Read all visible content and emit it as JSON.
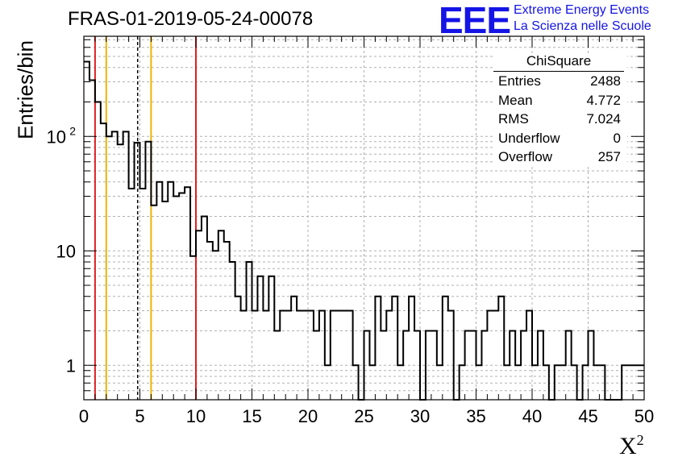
{
  "title": "FRAS-01-2019-05-24-00078",
  "logo": {
    "mark": "EEE",
    "line1": "Extreme Energy Events",
    "line2": "La Scienza nelle Scuole",
    "color": "#1414e6"
  },
  "stats_box": {
    "title": "ChiSquare",
    "rows": [
      {
        "label": "Entries",
        "value": "2488"
      },
      {
        "label": "Mean",
        "value": "4.772"
      },
      {
        "label": "RMS",
        "value": "7.024"
      },
      {
        "label": "Underflow",
        "value": "0"
      },
      {
        "label": "Overflow",
        "value": "257"
      }
    ]
  },
  "chart_data": {
    "type": "histogram",
    "title": "FRAS-01-2019-05-24-00078",
    "xlabel": "X",
    "xlabel_sup": "2",
    "ylabel": "Entries/bin",
    "xlim": [
      0,
      50
    ],
    "ylim": [
      0.5,
      750
    ],
    "yscale": "log",
    "grid": true,
    "bin_width": 0.5,
    "x_ticks": [
      0,
      5,
      10,
      15,
      20,
      25,
      30,
      35,
      40,
      45,
      50
    ],
    "y_ticks": [
      {
        "value": 1,
        "label": "1"
      },
      {
        "value": 10,
        "label": "10"
      },
      {
        "value": 100,
        "label": "10",
        "sup": "2"
      }
    ],
    "bin_counts": [
      450,
      310,
      200,
      130,
      100,
      110,
      85,
      110,
      35,
      88,
      35,
      90,
      25,
      40,
      27,
      40,
      30,
      32,
      36,
      9,
      15,
      20,
      12,
      10,
      15,
      12,
      8,
      4,
      3,
      8,
      3,
      6,
      3,
      6,
      2,
      3,
      3,
      4,
      3,
      3,
      3,
      2,
      3,
      1,
      3,
      3,
      3,
      3,
      1,
      0.5,
      2,
      1,
      4,
      2,
      3,
      4,
      1,
      2,
      4,
      2,
      0.5,
      2,
      2,
      1,
      4,
      3,
      0.5,
      1,
      2,
      2,
      1,
      2,
      3,
      3,
      4,
      1,
      2,
      1,
      2,
      3,
      1,
      2,
      1,
      0.5,
      1,
      1,
      2,
      1,
      0.5,
      1,
      2,
      1,
      1,
      0.5,
      0.5,
      0.5,
      1,
      1,
      1,
      1
    ],
    "vertical_lines": [
      {
        "x": 1,
        "color": "#e02020",
        "style": "solid"
      },
      {
        "x": 2,
        "color": "#f0b400",
        "style": "solid"
      },
      {
        "x": 4.8,
        "color": "#000000",
        "style": "dashed"
      },
      {
        "x": 6,
        "color": "#f0b400",
        "style": "solid"
      },
      {
        "x": 10,
        "color": "#e02020",
        "style": "solid"
      }
    ]
  }
}
